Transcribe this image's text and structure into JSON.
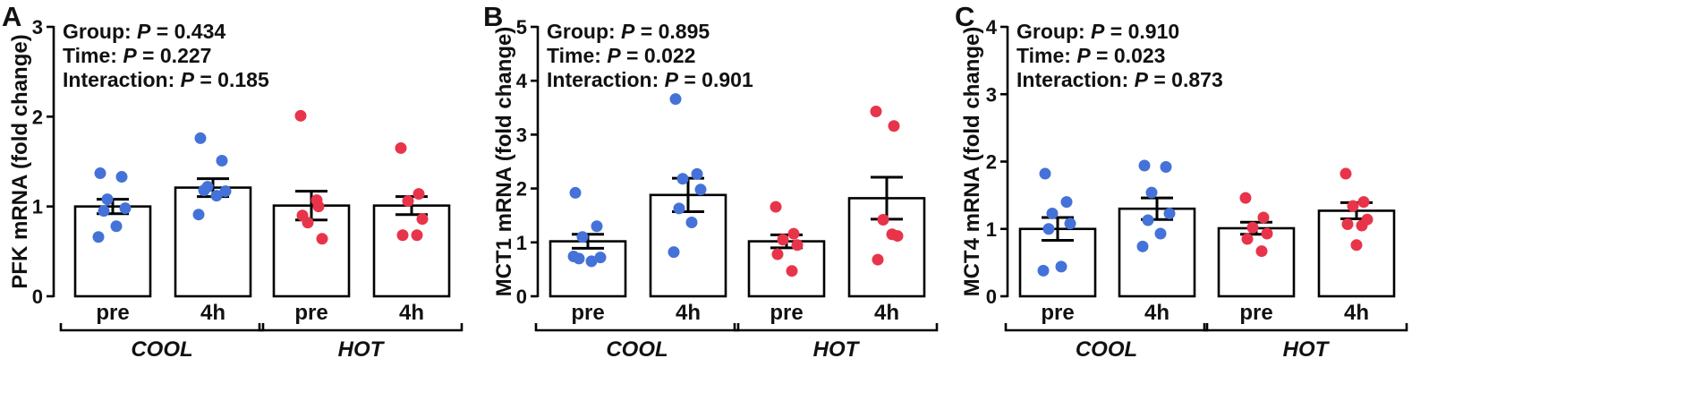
{
  "chart_data": [
    {
      "type": "bar",
      "panel": "A",
      "ylabel": "PFK mRNA (fold change)",
      "ylim": [
        0,
        3
      ],
      "yticks": [
        0,
        1,
        2,
        3
      ],
      "stats": [
        {
          "label": "Group: ",
          "p": "P",
          "value": " = 0.434"
        },
        {
          "label": "Time: ",
          "p": "P",
          "value": " = 0.227"
        },
        {
          "label": "Interaction: ",
          "p": "P",
          "value": " = 0.185"
        }
      ],
      "categories": [
        "pre",
        "4h",
        "pre",
        "4h"
      ],
      "groups": [
        {
          "label": "COOL"
        },
        {
          "label": "HOT"
        }
      ],
      "bars": [
        {
          "mean": 1.0,
          "sem": 0.08,
          "color": "#4472d8",
          "points": [
            1.37,
            1.33,
            1.08,
            0.98,
            0.95,
            0.78,
            0.66
          ]
        },
        {
          "mean": 1.21,
          "sem": 0.1,
          "color": "#4472d8",
          "points": [
            1.76,
            1.51,
            1.22,
            1.17,
            1.18,
            1.12,
            0.91
          ]
        },
        {
          "mean": 1.01,
          "sem": 0.16,
          "color": "#e8344a",
          "points": [
            2.01,
            1.0,
            0.82,
            0.64,
            0.9,
            1.07
          ]
        },
        {
          "mean": 1.01,
          "sem": 0.1,
          "color": "#e8344a",
          "points": [
            1.65,
            1.14,
            1.06,
            0.86,
            0.68,
            0.68
          ]
        }
      ]
    },
    {
      "type": "bar",
      "panel": "B",
      "ylabel": "MCT1 mRNA (fold change)",
      "ylim": [
        0,
        5
      ],
      "yticks": [
        0,
        1,
        2,
        3,
        4,
        5
      ],
      "stats": [
        {
          "label": "Group: ",
          "p": "P",
          "value": " = 0.895"
        },
        {
          "label": "Time: ",
          "p": "P",
          "value": " = 0.022"
        },
        {
          "label": "Interaction: ",
          "p": "P",
          "value": " = 0.901"
        }
      ],
      "categories": [
        "pre",
        "4h",
        "pre",
        "4h"
      ],
      "groups": [
        {
          "label": "COOL"
        },
        {
          "label": "HOT"
        }
      ],
      "bars": [
        {
          "mean": 1.02,
          "sem": 0.13,
          "color": "#4472d8",
          "points": [
            1.92,
            1.3,
            1.1,
            0.72,
            0.7,
            0.65,
            0.74
          ]
        },
        {
          "mean": 1.88,
          "sem": 0.31,
          "color": "#4472d8",
          "points": [
            3.66,
            2.27,
            2.18,
            1.98,
            1.63,
            1.37,
            0.82
          ]
        },
        {
          "mean": 1.02,
          "sem": 0.12,
          "color": "#e8344a",
          "points": [
            1.66,
            1.16,
            1.05,
            0.95,
            0.78,
            0.47
          ]
        },
        {
          "mean": 1.82,
          "sem": 0.39,
          "color": "#e8344a",
          "points": [
            3.43,
            3.16,
            1.42,
            1.12,
            0.68,
            1.15
          ]
        }
      ]
    },
    {
      "type": "bar",
      "panel": "C",
      "ylabel": "MCT4 mRNA (fold change)",
      "ylim": [
        0,
        4
      ],
      "yticks": [
        0,
        1,
        2,
        3,
        4
      ],
      "stats": [
        {
          "label": "Group: ",
          "p": "P",
          "value": " = 0.910"
        },
        {
          "label": "Time: ",
          "p": "P",
          "value": " = 0.023"
        },
        {
          "label": "Interaction: ",
          "p": "P",
          "value": " = 0.873"
        }
      ],
      "categories": [
        "pre",
        "4h",
        "pre",
        "4h"
      ],
      "groups": [
        {
          "label": "COOL"
        },
        {
          "label": "HOT"
        }
      ],
      "bars": [
        {
          "mean": 1.0,
          "sem": 0.17,
          "color": "#4472d8",
          "points": [
            1.82,
            1.4,
            1.23,
            1.08,
            1.0,
            0.44,
            0.38
          ]
        },
        {
          "mean": 1.3,
          "sem": 0.16,
          "color": "#4472d8",
          "points": [
            1.94,
            1.92,
            1.54,
            1.23,
            1.13,
            0.93,
            0.74
          ]
        },
        {
          "mean": 1.01,
          "sem": 0.09,
          "color": "#e8344a",
          "points": [
            1.46,
            1.17,
            1.02,
            0.93,
            0.85,
            0.67
          ]
        },
        {
          "mean": 1.27,
          "sem": 0.12,
          "color": "#e8344a",
          "points": [
            1.82,
            1.4,
            1.34,
            1.14,
            1.07,
            1.05,
            0.76
          ]
        }
      ]
    }
  ]
}
